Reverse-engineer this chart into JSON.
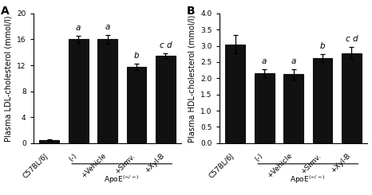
{
  "panel_A": {
    "title": "A",
    "ylabel": "Plasma LDL-cholesterol (mmol/l)",
    "ylim": [
      0,
      20
    ],
    "yticks": [
      0,
      4,
      8,
      12,
      16,
      20
    ],
    "categories": [
      "C57BL/6J",
      "(-)",
      "+Vehicle",
      "+Simv.",
      "+Xyl-B"
    ],
    "values": [
      0.5,
      16.0,
      16.0,
      11.8,
      13.5
    ],
    "errors": [
      0.1,
      0.5,
      0.7,
      0.5,
      0.4
    ],
    "letters": [
      "",
      "a",
      "a",
      "b",
      "c d"
    ],
    "bar_color": "#111111"
  },
  "panel_B": {
    "title": "B",
    "ylabel": "Plasma HDL-cholesterol (mmol/l)",
    "ylim": [
      0.0,
      4.0
    ],
    "yticks": [
      0.0,
      0.5,
      1.0,
      1.5,
      2.0,
      2.5,
      3.0,
      3.5,
      4.0
    ],
    "categories": [
      "C57BL/6J",
      "(-)",
      "+Vehicle",
      "+Simv.",
      "+Xyl-B"
    ],
    "values": [
      3.05,
      2.15,
      2.12,
      2.62,
      2.78
    ],
    "errors": [
      0.28,
      0.12,
      0.15,
      0.12,
      0.18
    ],
    "letters": [
      "",
      "a",
      "a",
      "b",
      "c d"
    ],
    "bar_color": "#111111"
  },
  "bar_width": 0.68,
  "font_family": "DejaVu Sans",
  "tick_fontsize": 6.5,
  "label_fontsize": 7,
  "title_fontsize": 10,
  "letter_fontsize": 7.5,
  "background_color": "#ffffff"
}
